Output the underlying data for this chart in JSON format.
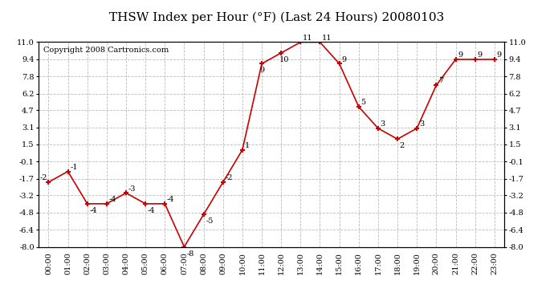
{
  "title": "THSW Index per Hour (°F) (Last 24 Hours) 20080103",
  "copyright": "Copyright 2008 Cartronics.com",
  "hours": [
    "00:00",
    "01:00",
    "02:00",
    "03:00",
    "04:00",
    "05:00",
    "06:00",
    "07:00",
    "08:00",
    "09:00",
    "10:00",
    "11:00",
    "12:00",
    "13:00",
    "14:00",
    "15:00",
    "16:00",
    "17:00",
    "18:00",
    "19:00",
    "20:00",
    "21:00",
    "22:00",
    "23:00"
  ],
  "values": [
    -2,
    -1,
    -4,
    -4,
    -3,
    -4,
    -4,
    -8,
    -5,
    -2,
    1,
    9,
    10,
    11,
    11,
    9,
    5,
    3,
    2,
    3,
    7,
    9.4,
    9.4,
    9.4
  ],
  "ylim": [
    -8.0,
    11.0
  ],
  "yticks": [
    -8.0,
    -6.4,
    -4.8,
    -3.2,
    -1.7,
    -0.1,
    1.5,
    3.1,
    4.7,
    6.2,
    7.8,
    9.4,
    11.0
  ],
  "line_color": "#cc0000",
  "marker_color": "#cc0000",
  "bg_color": "#ffffff",
  "grid_color": "#bbbbbb",
  "title_fontsize": 11,
  "label_fontsize": 7,
  "annot_fontsize": 7,
  "copyright_fontsize": 7
}
